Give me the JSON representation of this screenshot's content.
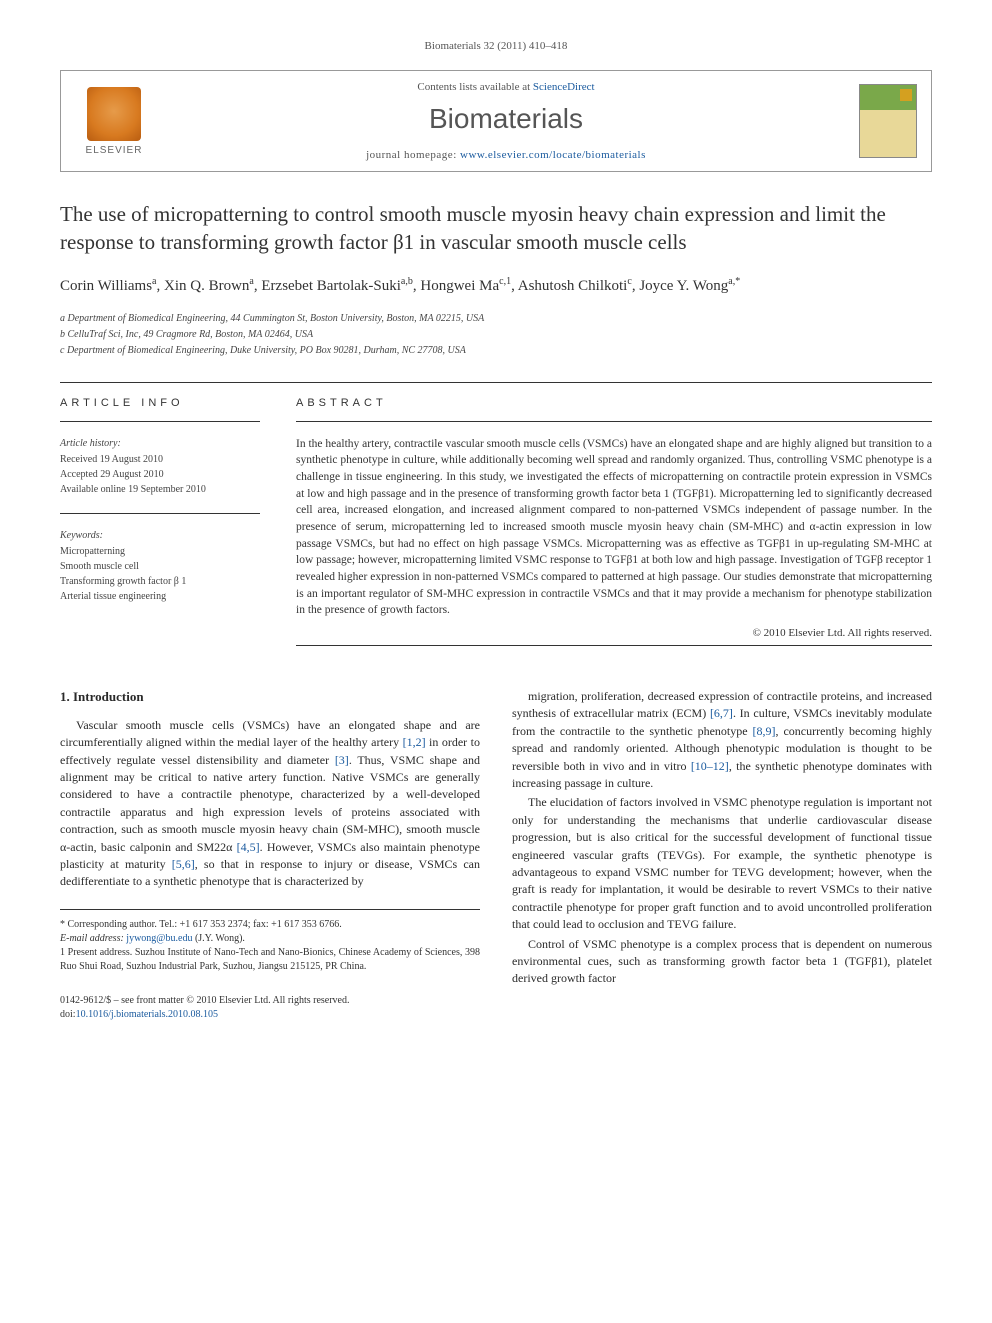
{
  "journalRef": "Biomaterials 32 (2011) 410–418",
  "header": {
    "contentsPrefix": "Contents lists available at ",
    "contentsLink": "ScienceDirect",
    "journalTitle": "Biomaterials",
    "homepagePrefix": "journal homepage: ",
    "homepageUrl": "www.elsevier.com/locate/biomaterials",
    "publisherLabel": "ELSEVIER"
  },
  "article": {
    "title": "The use of micropatterning to control smooth muscle myosin heavy chain expression and limit the response to transforming growth factor β1 in vascular smooth muscle cells",
    "authorsHtml": "Corin Williams<sup>a</sup>, Xin Q. Brown<sup>a</sup>, Erzsebet Bartolak-Suki<sup>a,b</sup>, Hongwei Ma<sup>c,1</sup>, Ashutosh Chilkoti<sup>c</sup>, Joyce Y. Wong<sup>a,*</sup>",
    "affiliations": [
      "a Department of Biomedical Engineering, 44 Cummington St, Boston University, Boston, MA 02215, USA",
      "b CelluTraf Sci, Inc, 49 Cragmore Rd, Boston, MA 02464, USA",
      "c Department of Biomedical Engineering, Duke University, PO Box 90281, Durham, NC 27708, USA"
    ]
  },
  "info": {
    "heading": "ARTICLE INFO",
    "historyHead": "Article history:",
    "history": [
      "Received 19 August 2010",
      "Accepted 29 August 2010",
      "Available online 19 September 2010"
    ],
    "keywordsHead": "Keywords:",
    "keywords": [
      "Micropatterning",
      "Smooth muscle cell",
      "Transforming growth factor β 1",
      "Arterial tissue engineering"
    ]
  },
  "abstract": {
    "heading": "ABSTRACT",
    "text": "In the healthy artery, contractile vascular smooth muscle cells (VSMCs) have an elongated shape and are highly aligned but transition to a synthetic phenotype in culture, while additionally becoming well spread and randomly organized. Thus, controlling VSMC phenotype is a challenge in tissue engineering. In this study, we investigated the effects of micropatterning on contractile protein expression in VSMCs at low and high passage and in the presence of transforming growth factor beta 1 (TGFβ1). Micropatterning led to significantly decreased cell area, increased elongation, and increased alignment compared to non-patterned VSMCs independent of passage number. In the presence of serum, micropatterning led to increased smooth muscle myosin heavy chain (SM-MHC) and α-actin expression in low passage VSMCs, but had no effect on high passage VSMCs. Micropatterning was as effective as TGFβ1 in up-regulating SM-MHC at low passage; however, micropatterning limited VSMC response to TGFβ1 at both low and high passage. Investigation of TGFβ receptor 1 revealed higher expression in non-patterned VSMCs compared to patterned at high passage. Our studies demonstrate that micropatterning is an important regulator of SM-MHC expression in contractile VSMCs and that it may provide a mechanism for phenotype stabilization in the presence of growth factors.",
    "copyright": "© 2010 Elsevier Ltd. All rights reserved."
  },
  "body": {
    "sectionHeading": "1. Introduction",
    "col1p1": "Vascular smooth muscle cells (VSMCs) have an elongated shape and are circumferentially aligned within the medial layer of the healthy artery [1,2] in order to effectively regulate vessel distensibility and diameter [3]. Thus, VSMC shape and alignment may be critical to native artery function. Native VSMCs are generally considered to have a contractile phenotype, characterized by a well-developed contractile apparatus and high expression levels of proteins associated with contraction, such as smooth muscle myosin heavy chain (SM-MHC), smooth muscle α-actin, basic calponin and SM22α [4,5]. However, VSMCs also maintain phenotype plasticity at maturity [5,6], so that in response to injury or disease, VSMCs can dedifferentiate to a synthetic phenotype that is characterized by",
    "col2p1": "migration, proliferation, decreased expression of contractile proteins, and increased synthesis of extracellular matrix (ECM) [6,7]. In culture, VSMCs inevitably modulate from the contractile to the synthetic phenotype [8,9], concurrently becoming highly spread and randomly oriented. Although phenotypic modulation is thought to be reversible both in vivo and in vitro [10–12], the synthetic phenotype dominates with increasing passage in culture.",
    "col2p2": "The elucidation of factors involved in VSMC phenotype regulation is important not only for understanding the mechanisms that underlie cardiovascular disease progression, but is also critical for the successful development of functional tissue engineered vascular grafts (TEVGs). For example, the synthetic phenotype is advantageous to expand VSMC number for TEVG development; however, when the graft is ready for implantation, it would be desirable to revert VSMCs to their native contractile phenotype for proper graft function and to avoid uncontrolled proliferation that could lead to occlusion and TEVG failure.",
    "col2p3": "Control of VSMC phenotype is a complex process that is dependent on numerous environmental cues, such as transforming growth factor beta 1 (TGFβ1), platelet derived growth factor"
  },
  "footnotes": {
    "corresponding": "* Corresponding author. Tel.: +1 617 353 2374; fax: +1 617 353 6766.",
    "emailLabel": "E-mail address: ",
    "email": "jywong@bu.edu",
    "emailSuffix": " (J.Y. Wong).",
    "present": "1 Present address. Suzhou Institute of Nano-Tech and Nano-Bionics, Chinese Academy of Sciences, 398 Ruo Shui Road, Suzhou Industrial Park, Suzhou, Jiangsu 215125, PR China."
  },
  "bottom": {
    "issn": "0142-9612/$ – see front matter © 2010 Elsevier Ltd. All rights reserved.",
    "doiLabel": "doi:",
    "doi": "10.1016/j.biomaterials.2010.08.105"
  },
  "citations": {
    "c12": "[1,2]",
    "c3": "[3]",
    "c45": "[4,5]",
    "c56": "[5,6]",
    "c67": "[6,7]",
    "c89": "[8,9]",
    "c1012": "[10–12]"
  }
}
